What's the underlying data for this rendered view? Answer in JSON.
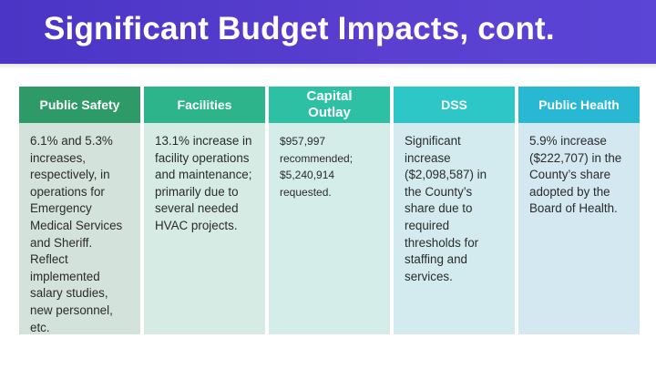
{
  "slide": {
    "title": "Significant Budget Impacts, cont."
  },
  "columns": [
    {
      "heading": "Public Safety",
      "text": "6.1% and 5.3% increases, respectively, in operations for Emergency Medical Services and Sheriff. Reflect implemented salary studies, new personnel, etc."
    },
    {
      "heading": "Facilities",
      "text": "13.1% increase in facility operations and maintenance; primarily due to several needed HVAC projects."
    },
    {
      "heading": "Capital Outlay",
      "text": "$957,997 recommended; $5,240,914 requested."
    },
    {
      "heading": "DSS",
      "text": "Significant increase ($2,098,587) in the County’s share due to required thresholds for staffing and services."
    },
    {
      "heading": "Public Health",
      "text": "5.9% increase ($222,707) in the County’s share adopted by the Board of Health."
    }
  ],
  "colors": {
    "banner": "#4a35c6",
    "public_safety": "#2e9a68",
    "facilities": "#2eb48a",
    "capital_outlay": "#2ec0a4",
    "dss": "#2ec7c8",
    "public_health": "#28b8d4"
  }
}
